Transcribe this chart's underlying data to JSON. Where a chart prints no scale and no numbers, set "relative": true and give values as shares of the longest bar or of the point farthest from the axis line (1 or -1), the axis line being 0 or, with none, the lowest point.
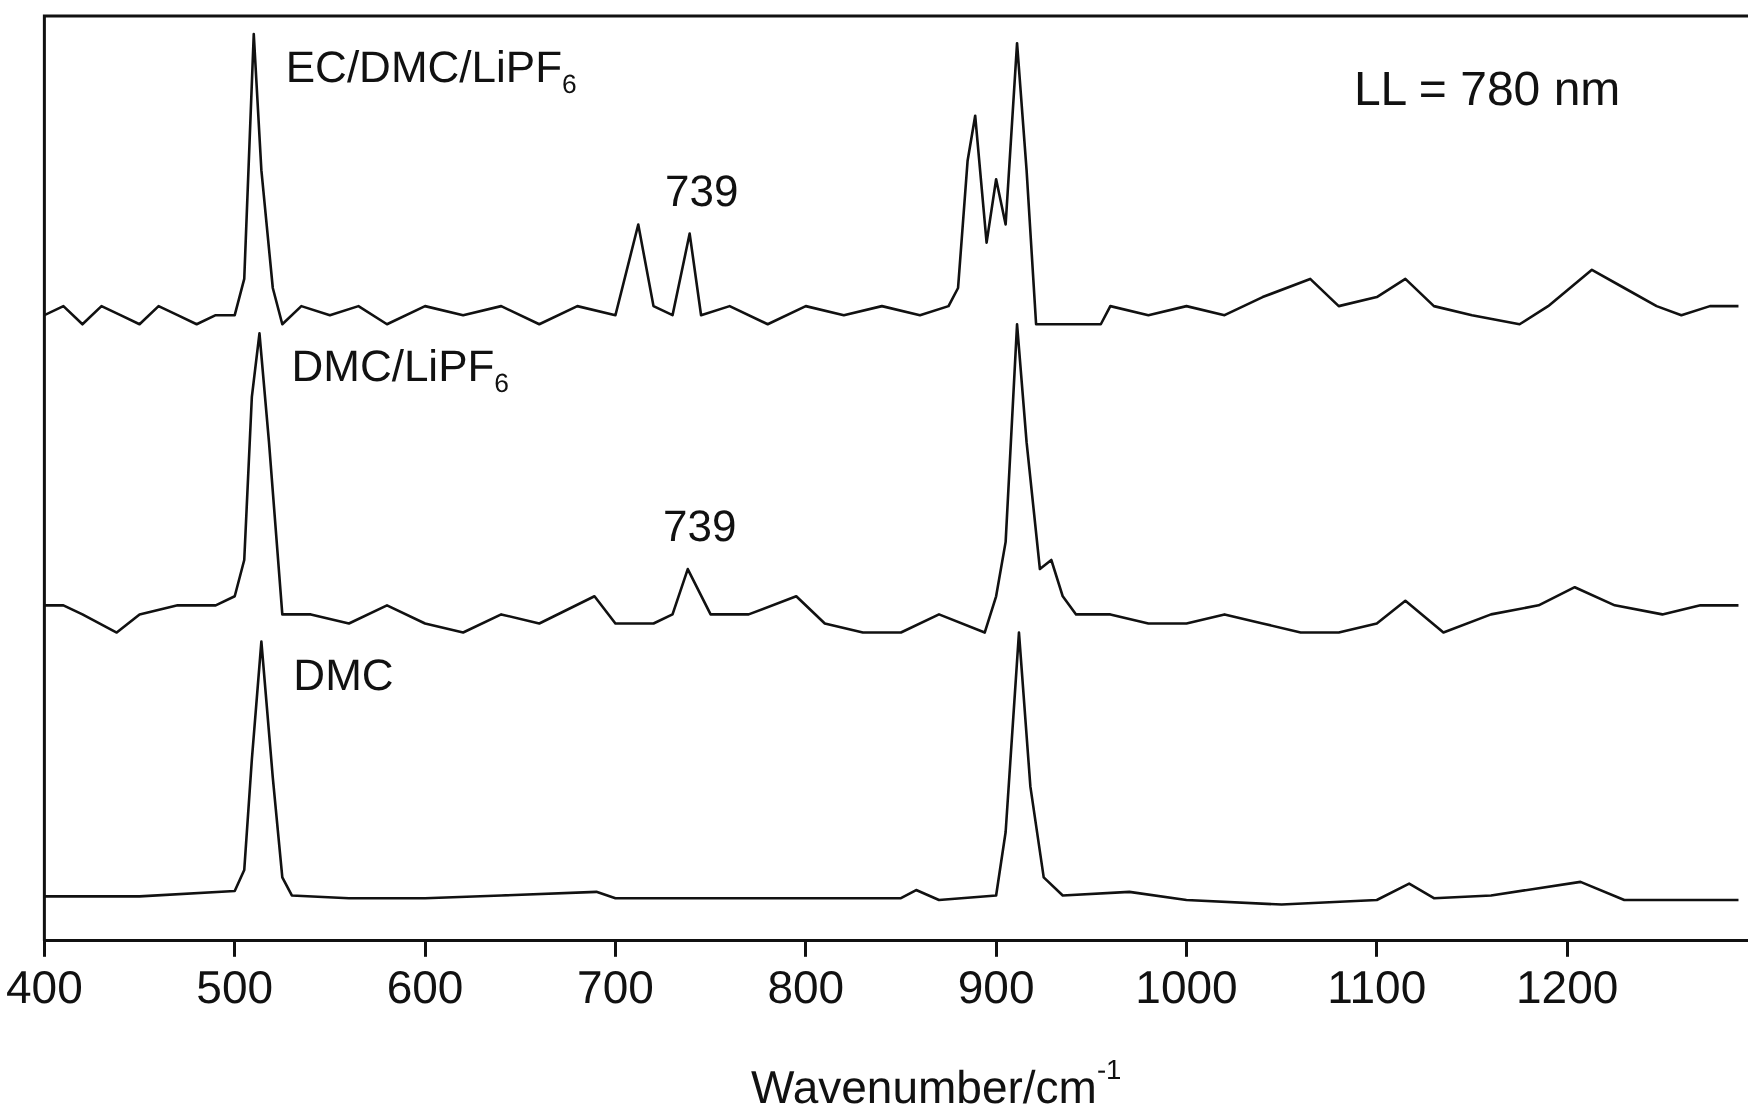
{
  "chart_data": {
    "type": "line",
    "relative": true,
    "xlabel": "Wavenumber/cm$^{-1}$",
    "xlim": [
      400,
      1295
    ],
    "xticks": [
      400,
      500,
      600,
      700,
      800,
      900,
      1000,
      1100,
      1200
    ],
    "grid": false,
    "legend": false,
    "marker": "none",
    "line_style": "solid",
    "annotations": [
      {
        "text": "739",
        "x": 739,
        "y": 0.78
      },
      {
        "text": "739",
        "x": 738,
        "y": 0.41
      },
      "LL = 780 nm"
    ],
    "series": [
      {
        "name": "EC/DMC/LiPF$_{6}$",
        "color": "#111111",
        "x": [
          400,
          410,
          420,
          430,
          440,
          450,
          460,
          470,
          480,
          490,
          500,
          505,
          510,
          514,
          520,
          525,
          535,
          550,
          565,
          580,
          600,
          620,
          640,
          660,
          680,
          700,
          712,
          720,
          730,
          739,
          745,
          760,
          780,
          800,
          820,
          840,
          860,
          875,
          880,
          885,
          889,
          895,
          900,
          905,
          911,
          916,
          921,
          940,
          955,
          960,
          980,
          1000,
          1020,
          1040,
          1065,
          1080,
          1100,
          1115,
          1130,
          1150,
          1175,
          1190,
          1213,
          1230,
          1247,
          1260,
          1275,
          1290
        ],
        "values": [
          0.69,
          0.7,
          0.68,
          0.7,
          0.69,
          0.68,
          0.7,
          0.69,
          0.68,
          0.69,
          0.69,
          0.73,
          1.0,
          0.85,
          0.72,
          0.68,
          0.7,
          0.69,
          0.7,
          0.68,
          0.7,
          0.69,
          0.7,
          0.68,
          0.7,
          0.69,
          0.79,
          0.7,
          0.69,
          0.78,
          0.69,
          0.7,
          0.68,
          0.7,
          0.69,
          0.7,
          0.69,
          0.7,
          0.72,
          0.86,
          0.91,
          0.77,
          0.84,
          0.79,
          0.99,
          0.85,
          0.68,
          0.68,
          0.68,
          0.7,
          0.69,
          0.7,
          0.69,
          0.71,
          0.73,
          0.7,
          0.71,
          0.73,
          0.7,
          0.69,
          0.68,
          0.7,
          0.74,
          0.72,
          0.7,
          0.69,
          0.7,
          0.7
        ]
      },
      {
        "name": "DMC/LiPF$_{6}$",
        "color": "#111111",
        "x": [
          400,
          410,
          420,
          438,
          450,
          470,
          490,
          500,
          505,
          509,
          513,
          518,
          525,
          540,
          560,
          580,
          600,
          620,
          640,
          660,
          689,
          700,
          720,
          730,
          738,
          750,
          770,
          795,
          810,
          830,
          850,
          870,
          894,
          900,
          905,
          911,
          916,
          923,
          929,
          935,
          942,
          960,
          980,
          1000,
          1020,
          1040,
          1060,
          1080,
          1100,
          1115,
          1135,
          1160,
          1185,
          1204,
          1225,
          1250,
          1270,
          1290
        ],
        "values": [
          0.37,
          0.37,
          0.36,
          0.34,
          0.36,
          0.37,
          0.37,
          0.38,
          0.42,
          0.6,
          0.67,
          0.55,
          0.36,
          0.36,
          0.35,
          0.37,
          0.35,
          0.34,
          0.36,
          0.35,
          0.38,
          0.35,
          0.35,
          0.36,
          0.41,
          0.36,
          0.36,
          0.38,
          0.35,
          0.34,
          0.34,
          0.36,
          0.34,
          0.38,
          0.44,
          0.68,
          0.55,
          0.41,
          0.42,
          0.38,
          0.36,
          0.36,
          0.35,
          0.35,
          0.36,
          0.35,
          0.34,
          0.34,
          0.35,
          0.375,
          0.34,
          0.36,
          0.37,
          0.39,
          0.37,
          0.36,
          0.37,
          0.37
        ]
      },
      {
        "name": "DMC",
        "color": "#111111",
        "x": [
          400,
          450,
          500,
          505,
          509,
          514,
          520,
          525,
          530,
          560,
          600,
          640,
          690,
          700,
          800,
          850,
          858,
          870,
          900,
          905,
          912,
          918,
          925,
          935,
          970,
          1000,
          1050,
          1100,
          1117,
          1130,
          1160,
          1207,
          1230,
          1260,
          1290
        ],
        "values": [
          0.049,
          0.049,
          0.055,
          0.078,
          0.2,
          0.33,
          0.18,
          0.07,
          0.05,
          0.047,
          0.047,
          0.05,
          0.054,
          0.047,
          0.047,
          0.047,
          0.056,
          0.045,
          0.05,
          0.12,
          0.34,
          0.17,
          0.07,
          0.05,
          0.054,
          0.045,
          0.04,
          0.045,
          0.063,
          0.047,
          0.05,
          0.065,
          0.045,
          0.045,
          0.045
        ]
      }
    ]
  }
}
